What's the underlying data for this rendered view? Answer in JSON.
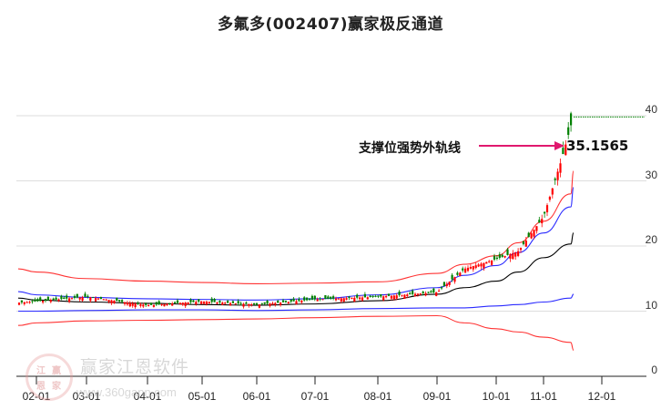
{
  "title": "多氟多(002407)赢家极反通道",
  "annotation": {
    "label": "支撑位强势外轨线",
    "value": "35.1565",
    "arrow_color": "#e0186e"
  },
  "watermark": {
    "name": "赢家江恩软件",
    "url": "www.360gann.com",
    "logo_chars": [
      "江",
      "赢",
      "恩",
      "家"
    ]
  },
  "colors": {
    "up_candle": "#ff0000",
    "down_candle": "#008000",
    "outer_band": "#ff3333",
    "inner_band": "#2a2aff",
    "mid_line": "#000000",
    "level_line": "#008000",
    "grid": "#dddddd"
  },
  "chart_data": {
    "type": "candlestick",
    "title": "多氟多(002407)赢家极反通道",
    "xlabel": "",
    "ylabel": "",
    "ylim": [
      0,
      42
    ],
    "grid": true,
    "y_axis_position": "right",
    "y_ticks": [
      0,
      10,
      20,
      30,
      40
    ],
    "x_ticks": [
      "02-01",
      "03-01",
      "04-01",
      "05-01",
      "06-01",
      "07-01",
      "08-01",
      "09-01",
      "10-01",
      "11-01",
      "12-01"
    ],
    "series": [
      {
        "name": "upper outer band (red)",
        "x": [
          "01-15",
          "02-01",
          "03-01",
          "04-01",
          "05-01",
          "06-01",
          "07-01",
          "08-01",
          "09-01",
          "09-15",
          "10-01",
          "10-15",
          "11-01",
          "11-15",
          "11-20"
        ],
        "values": [
          16.5,
          16.0,
          15.0,
          14.6,
          14.4,
          14.2,
          14.3,
          14.5,
          15.8,
          17.2,
          18.5,
          20.5,
          23.8,
          28.0,
          31.5
        ]
      },
      {
        "name": "upper inner band (blue)",
        "x": [
          "01-15",
          "02-01",
          "03-01",
          "04-01",
          "05-01",
          "06-01",
          "07-01",
          "08-01",
          "09-01",
          "09-15",
          "10-01",
          "10-15",
          "11-01",
          "11-15",
          "11-20"
        ],
        "values": [
          13.0,
          12.5,
          12.1,
          11.9,
          11.8,
          11.7,
          11.9,
          12.5,
          13.6,
          15.5,
          17.0,
          19.0,
          22.0,
          26.0,
          29.0
        ]
      },
      {
        "name": "middle line (black)",
        "x": [
          "01-15",
          "02-01",
          "03-01",
          "04-01",
          "05-01",
          "06-01",
          "07-01",
          "08-01",
          "09-01",
          "09-15",
          "10-01",
          "10-15",
          "11-01",
          "11-15",
          "11-20"
        ],
        "values": [
          12.0,
          11.7,
          11.4,
          11.2,
          11.0,
          10.9,
          11.1,
          11.6,
          12.6,
          13.6,
          14.6,
          16.0,
          18.2,
          20.3,
          22.0
        ]
      },
      {
        "name": "lower inner band (blue)",
        "x": [
          "01-15",
          "02-01",
          "03-01",
          "04-01",
          "05-01",
          "06-01",
          "07-01",
          "08-01",
          "09-01",
          "09-15",
          "10-01",
          "10-15",
          "11-01",
          "11-15",
          "11-20"
        ],
        "values": [
          10.0,
          10.0,
          10.1,
          10.2,
          10.2,
          10.1,
          10.2,
          10.4,
          10.5,
          10.5,
          10.8,
          11.0,
          11.4,
          12.0,
          12.6
        ]
      },
      {
        "name": "lower outer band (red)",
        "x": [
          "01-15",
          "02-01",
          "03-01",
          "04-01",
          "05-01",
          "06-01",
          "07-01",
          "08-01",
          "09-01",
          "09-15",
          "10-01",
          "10-15",
          "11-01",
          "11-15",
          "11-20"
        ],
        "values": [
          7.8,
          8.2,
          8.5,
          8.6,
          8.7,
          8.8,
          9.0,
          9.2,
          9.3,
          8.2,
          7.3,
          6.8,
          6.0,
          5.2,
          4.0
        ]
      },
      {
        "name": "close price (candles)",
        "x": [
          "01-15",
          "02-01",
          "03-01",
          "04-01",
          "05-01",
          "06-01",
          "07-01",
          "08-01",
          "09-01",
          "09-15",
          "10-01",
          "10-15",
          "11-01",
          "11-10",
          "11-20"
        ],
        "values": [
          11.3,
          11.5,
          12.2,
          10.9,
          11.5,
          11.0,
          11.8,
          12.2,
          12.9,
          16.5,
          18.0,
          19.2,
          24.5,
          33.0,
          39.5
        ]
      },
      {
        "name": "level line (green dotted)",
        "x": [
          "11-20",
          "12-20"
        ],
        "values": [
          40.5,
          40.5
        ]
      }
    ],
    "annotations": [
      {
        "text": "支撑位强势外轨线",
        "value": 35.1565,
        "type": "arrow"
      }
    ]
  }
}
